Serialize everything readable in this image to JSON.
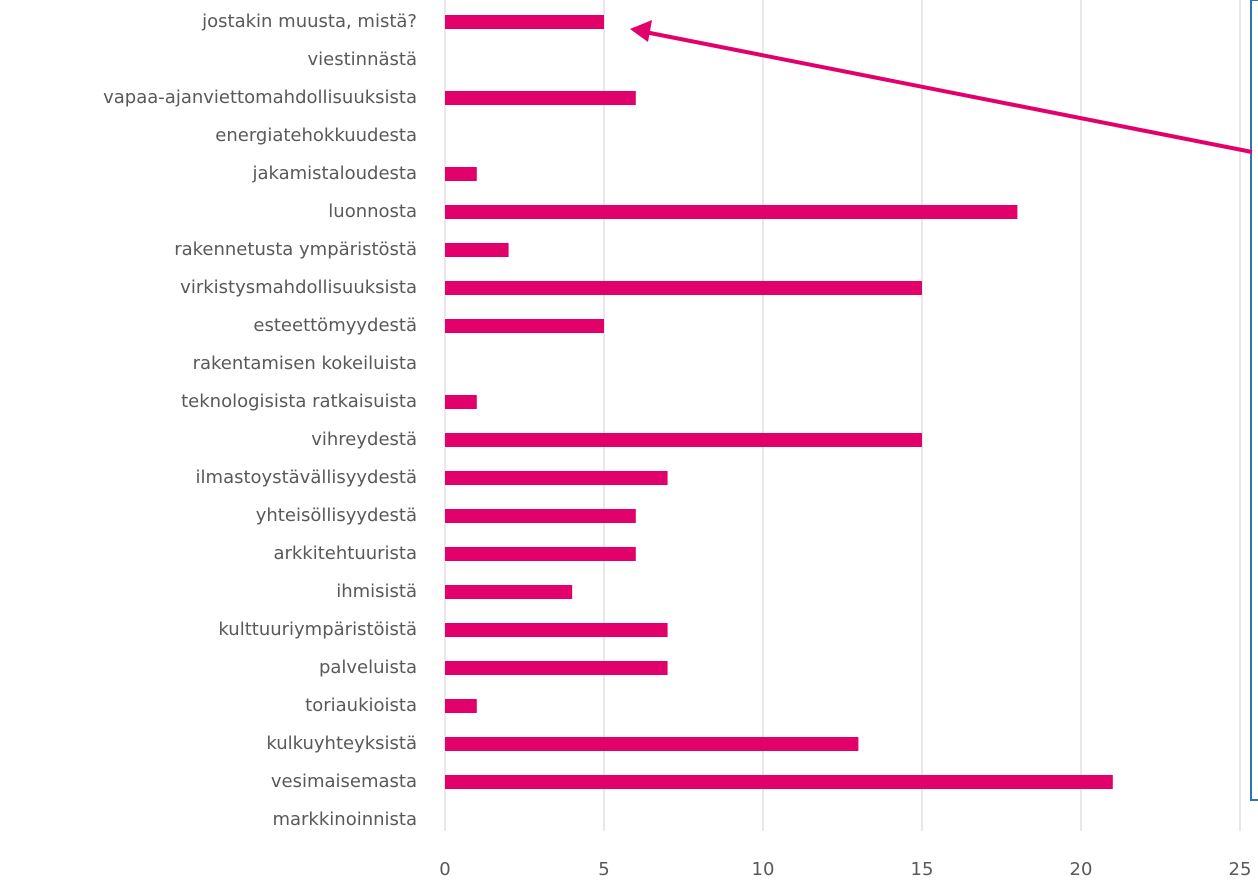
{
  "chart_data": {
    "type": "bar",
    "orientation": "horizontal",
    "categories": [
      "jostakin muusta, mistä?",
      "viestinnästä",
      "vapaa-ajanviettomahdollisuuksista",
      "energiatehokkuudesta",
      "jakamistaloudesta",
      "luonnosta",
      "rakennetusta ympäristöstä",
      "virkistysmahdollisuuksista",
      "esteettömyydestä",
      "rakentamisen kokeiluista",
      "teknologisista ratkaisuista",
      "vihreydestä",
      "ilmastoystävällisyydestä",
      "yhteisöllisyydestä",
      "arkkitehtuurista",
      "ihmisistä",
      "kulttuuriympäristöistä",
      "palveluista",
      "toriaukioista",
      "kulkuyhteyksistä",
      "vesimaisemasta",
      "markkinoinnista"
    ],
    "values": [
      5,
      0,
      6,
      0,
      1,
      18,
      2,
      15,
      5,
      0,
      1,
      15,
      7,
      6,
      6,
      4,
      7,
      7,
      1,
      13,
      21,
      0
    ],
    "color": "#e2006b",
    "xlim": [
      0,
      25
    ],
    "xticks": [
      0,
      5,
      10,
      15,
      20,
      25
    ],
    "grid": true
  }
}
